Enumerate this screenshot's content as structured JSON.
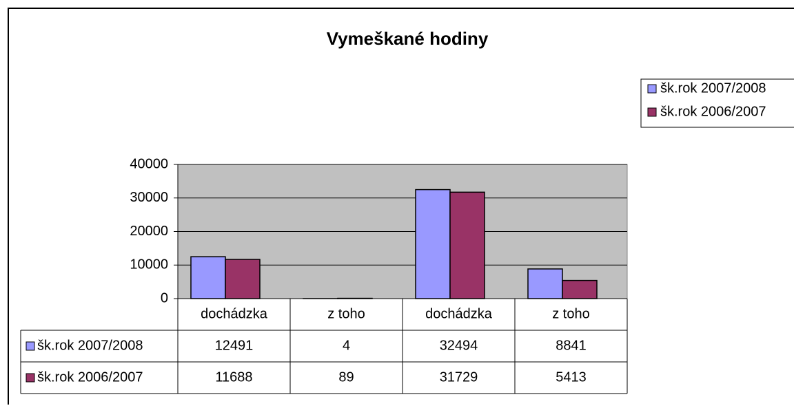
{
  "chart_data": {
    "type": "bar",
    "title": "Vymeškané hodiny",
    "categories": [
      "dochádzka",
      "z toho",
      "dochádzka",
      "z toho"
    ],
    "series": [
      {
        "name": "šk.rok 2007/2008",
        "color": "#9999ff",
        "values": [
          12491,
          4,
          32494,
          8841
        ]
      },
      {
        "name": "šk.rok 2006/2007",
        "color": "#993366",
        "values": [
          11688,
          89,
          31729,
          5413
        ]
      }
    ],
    "ylim": [
      0,
      40000
    ],
    "yticks": [
      0,
      10000,
      20000,
      30000,
      40000
    ],
    "grid": true,
    "legend": "right",
    "data_table": true
  }
}
